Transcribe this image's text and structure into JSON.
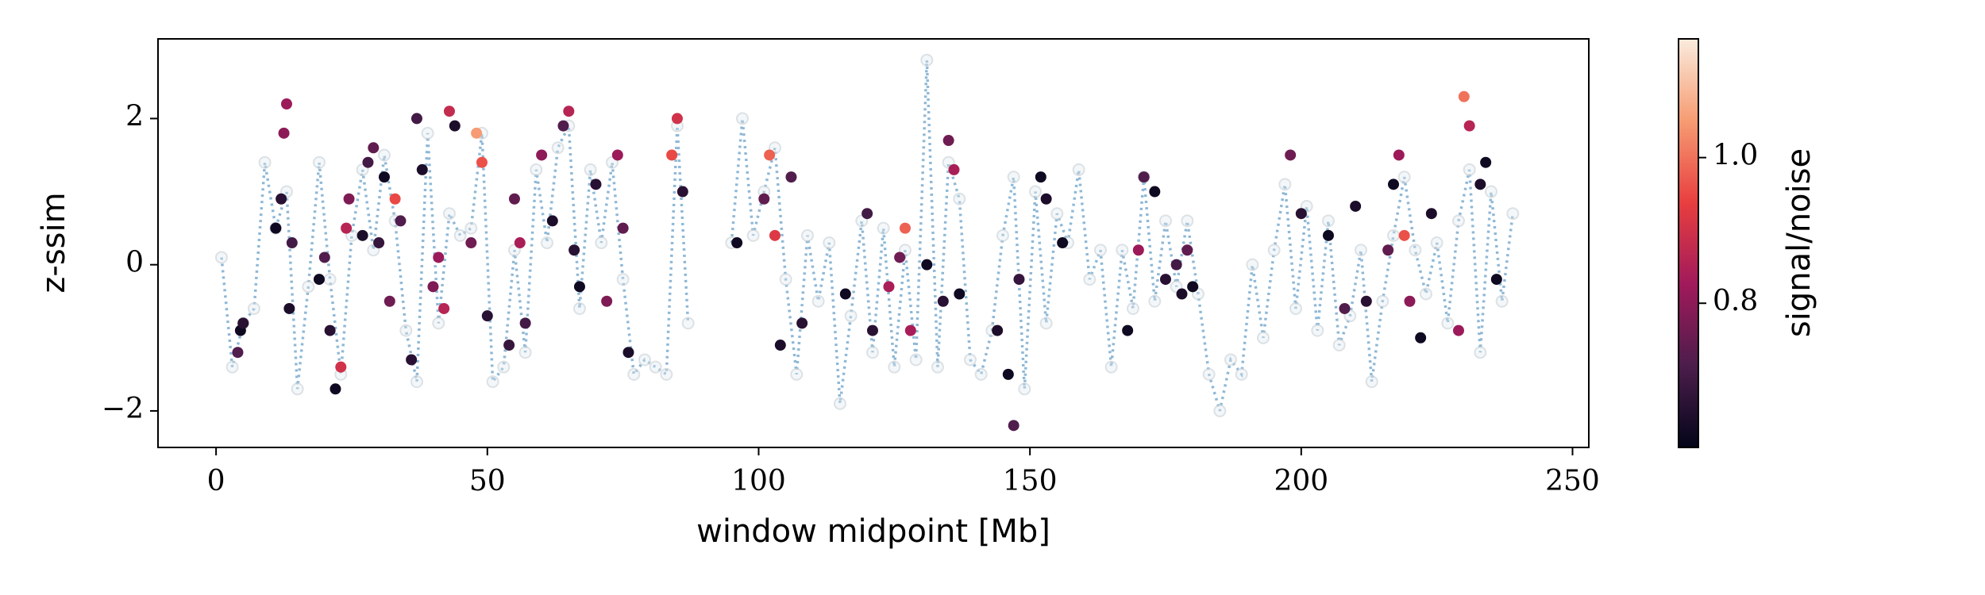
{
  "chart_data": {
    "type": "scatter",
    "xlabel": "window midpoint [Mb]",
    "ylabel": "z-ssim",
    "colorbar_label": "signal/noise",
    "xlim": [
      -10.7,
      253
    ],
    "ylim": [
      -2.5,
      3.09
    ],
    "xticks": [
      0,
      50,
      100,
      150,
      200,
      250
    ],
    "yticks": [
      {
        "value": -2,
        "label": "−2"
      },
      0,
      2
    ],
    "clim": [
      0.602,
      1.163
    ],
    "cticks": [
      0.8,
      {
        "value": 1,
        "label": "1.0"
      }
    ],
    "colormap": [
      "#03051a",
      "#4c1d4b",
      "#a11a5b",
      "#e83f3f",
      "#f69c73",
      "#faebdd"
    ],
    "background": {
      "color": "#8fb8d6",
      "x": [
        1,
        3,
        5,
        7,
        9,
        11,
        13,
        15,
        17,
        19,
        21,
        23,
        25,
        27,
        29,
        31,
        33,
        35,
        37,
        39,
        41,
        43,
        45,
        47,
        49,
        51,
        53,
        55,
        57,
        59,
        61,
        63,
        65,
        67,
        69,
        71,
        73,
        75,
        77,
        79,
        81,
        83,
        85,
        87,
        89,
        91,
        93,
        95,
        97,
        99,
        101,
        103,
        105,
        107,
        109,
        111,
        113,
        115,
        117,
        119,
        121,
        123,
        125,
        127,
        129,
        131,
        133,
        135,
        137,
        139,
        141,
        143,
        145,
        147,
        149,
        151,
        153,
        155,
        157,
        159,
        161,
        163,
        165,
        167,
        169,
        171,
        173,
        175,
        177,
        179,
        181,
        183,
        185,
        187,
        189,
        191,
        193,
        195,
        197,
        199,
        201,
        203,
        205,
        207,
        209,
        211,
        213,
        215,
        217,
        219,
        221,
        223,
        225,
        227,
        229,
        231,
        233,
        235,
        237,
        239
      ],
      "values": [
        0.1,
        -1.4,
        -0.8,
        -0.6,
        1.4,
        0.5,
        1.0,
        -1.7,
        -0.3,
        1.4,
        -0.2,
        -1.5,
        0.4,
        1.3,
        0.2,
        1.5,
        0.6,
        -0.9,
        -1.6,
        1.8,
        -0.8,
        0.7,
        0.4,
        0.5,
        1.8,
        -1.6,
        -1.4,
        0.2,
        -1.2,
        1.3,
        0.3,
        1.6,
        1.9,
        -0.6,
        1.3,
        0.3,
        1.4,
        -0.2,
        -1.5,
        -1.3,
        -1.4,
        -1.5,
        1.9,
        -0.8,
        null,
        null,
        null,
        0.3,
        2.0,
        0.4,
        1.0,
        1.6,
        -0.2,
        -1.5,
        0.4,
        -0.5,
        0.3,
        -1.9,
        -0.7,
        0.6,
        -1.2,
        0.5,
        -1.4,
        0.2,
        -1.3,
        2.8,
        -1.4,
        1.4,
        0.9,
        -1.3,
        -1.5,
        -0.9,
        0.4,
        1.2,
        -1.7,
        1.0,
        -0.8,
        0.7,
        0.3,
        1.3,
        -0.2,
        0.2,
        -1.4,
        0.2,
        -0.6,
        1.2,
        -0.5,
        0.6,
        -0.3,
        0.6,
        -0.4,
        -1.5,
        -2.0,
        -1.3,
        -1.5,
        0.0,
        -1.0,
        0.2,
        1.1,
        -0.6,
        0.8,
        -0.9,
        0.6,
        -1.1,
        -0.7,
        0.2,
        -1.6,
        -0.5,
        0.4,
        1.2,
        0.2,
        -0.4,
        0.3,
        -0.8,
        0.6,
        1.3,
        -1.2,
        1.0,
        -0.5,
        0.7
      ]
    },
    "points": {
      "x": [
        4,
        4.5,
        5,
        11,
        12,
        12.5,
        13,
        13.5,
        14,
        19,
        20,
        21,
        22,
        23,
        24,
        24.5,
        27,
        28,
        29,
        30,
        31,
        32,
        33,
        34,
        36,
        37,
        38,
        40,
        41,
        42,
        43,
        44,
        47,
        48,
        49,
        50,
        54,
        55,
        56,
        57,
        60,
        62,
        64,
        65,
        66,
        67,
        70,
        72,
        74,
        75,
        76,
        84,
        85,
        86,
        96,
        101,
        102,
        103,
        104,
        106,
        108,
        116,
        120,
        121,
        124,
        126,
        127,
        128,
        131,
        134,
        135,
        136,
        137,
        144,
        146,
        147,
        148,
        152,
        153,
        156,
        168,
        170,
        171,
        173,
        175,
        177,
        178,
        179,
        180,
        198,
        200,
        205,
        208,
        210,
        212,
        216,
        217,
        218,
        219,
        220,
        222,
        224,
        229,
        230,
        231,
        233,
        234,
        236
      ],
      "values": [
        -1.2,
        -0.9,
        -0.8,
        0.5,
        0.9,
        1.8,
        2.2,
        -0.6,
        0.3,
        -0.2,
        0.1,
        -0.9,
        -1.7,
        -1.4,
        0.5,
        0.9,
        0.4,
        1.4,
        1.6,
        0.3,
        1.2,
        -0.5,
        0.9,
        0.6,
        -1.3,
        2.0,
        1.3,
        -0.3,
        0.1,
        -0.6,
        2.1,
        1.9,
        0.3,
        1.8,
        1.4,
        -0.7,
        -1.1,
        0.9,
        0.3,
        -0.8,
        1.5,
        0.6,
        1.9,
        2.1,
        0.2,
        -0.3,
        1.1,
        -0.5,
        1.5,
        0.5,
        -1.2,
        1.5,
        2.0,
        1.0,
        0.3,
        0.9,
        1.5,
        0.4,
        -1.1,
        1.2,
        -0.8,
        -0.4,
        0.7,
        -0.9,
        -0.3,
        0.1,
        0.5,
        -0.9,
        0.0,
        -0.5,
        1.7,
        1.3,
        -0.4,
        -0.9,
        -1.5,
        -2.2,
        -0.2,
        1.2,
        0.9,
        0.3,
        -0.9,
        0.2,
        1.2,
        1.0,
        -0.2,
        0.0,
        -0.4,
        0.2,
        -0.3,
        1.5,
        0.7,
        0.4,
        -0.6,
        0.8,
        -0.5,
        0.2,
        1.1,
        1.5,
        0.4,
        -0.5,
        -1.0,
        0.7,
        -0.9,
        2.3,
        1.9,
        1.1,
        1.4,
        -0.2
      ],
      "c": [
        0.72,
        0.62,
        0.66,
        0.62,
        0.66,
        0.8,
        0.82,
        0.64,
        0.7,
        0.62,
        0.72,
        0.66,
        0.62,
        0.9,
        0.86,
        0.78,
        0.64,
        0.7,
        0.74,
        0.68,
        0.62,
        0.76,
        0.95,
        0.72,
        0.66,
        0.7,
        0.64,
        0.78,
        0.82,
        0.86,
        0.88,
        0.64,
        0.76,
        1.05,
        0.96,
        0.66,
        0.68,
        0.74,
        0.84,
        0.7,
        0.8,
        0.64,
        0.72,
        0.86,
        0.66,
        0.62,
        0.66,
        0.78,
        0.82,
        0.74,
        0.64,
        0.95,
        0.9,
        0.66,
        0.62,
        0.74,
        0.98,
        0.92,
        0.64,
        0.72,
        0.66,
        0.62,
        0.7,
        0.66,
        0.84,
        0.76,
        0.98,
        0.84,
        0.62,
        0.66,
        0.76,
        0.84,
        0.62,
        0.64,
        0.62,
        0.72,
        0.68,
        0.62,
        0.64,
        0.62,
        0.62,
        0.82,
        0.72,
        0.62,
        0.66,
        0.7,
        0.64,
        0.74,
        0.62,
        0.76,
        0.66,
        0.62,
        0.72,
        0.64,
        0.66,
        0.74,
        0.62,
        0.82,
        0.96,
        0.8,
        0.62,
        0.64,
        0.82,
        1.0,
        0.86,
        0.64,
        0.62,
        0.62
      ]
    }
  }
}
